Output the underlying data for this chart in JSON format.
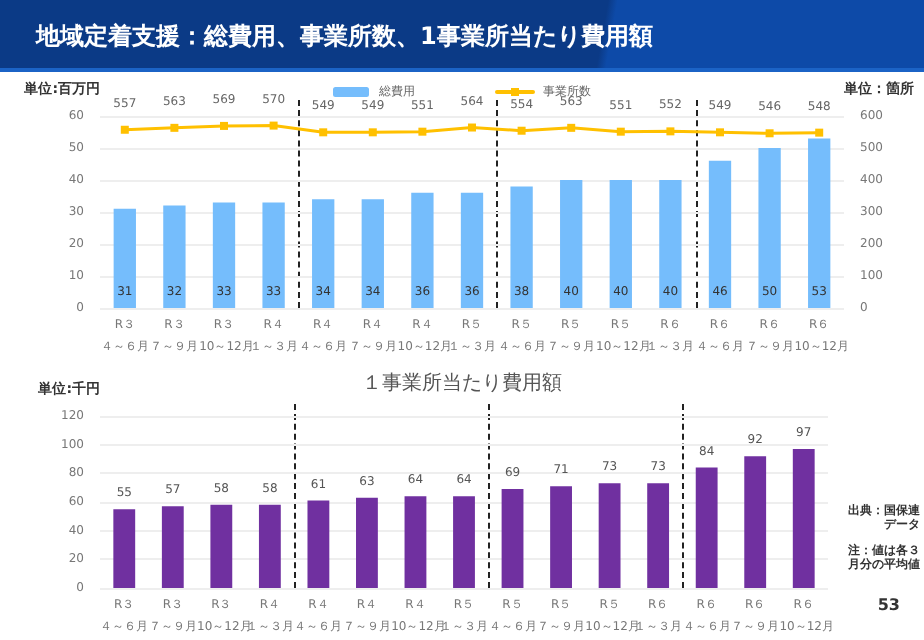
{
  "chart_data": [
    {
      "type": "bar",
      "title": "地域定着支援：総費用、事業所数、1事業所当たり費用額",
      "ylabel": "単位:百万円",
      "y2label": "単位：箇所",
      "categories": [
        "R３４～６月",
        "R３７～９月",
        "R３10～12月",
        "R４１～３月",
        "R４４～６月",
        "R４７～９月",
        "R４10～12月",
        "R５１～３月",
        "R５４～６月",
        "R５７～９月",
        "R５10～12月",
        "R６１～３月",
        "R６４～６月",
        "R６７～９月",
        "R６10～12月"
      ],
      "series": [
        {
          "name": "総費用",
          "color": "#75bdfc",
          "values": [
            31,
            32,
            33,
            33,
            34,
            34,
            36,
            36,
            38,
            40,
            40,
            40,
            46,
            50,
            53
          ]
        },
        {
          "name": "事業所数",
          "type": "line",
          "axis": "y2",
          "color": "#ffc000",
          "values": [
            557,
            563,
            569,
            570,
            549,
            549,
            551,
            564,
            554,
            563,
            551,
            552,
            549,
            546,
            548
          ]
        }
      ],
      "ylim": [
        0,
        60
      ],
      "yticks": [
        0,
        10,
        20,
        30,
        40,
        50,
        60
      ],
      "y2lim": [
        0,
        600
      ],
      "y2ticks": [
        0,
        100,
        200,
        300,
        400,
        500,
        600
      ],
      "data_labels": true,
      "legend": "top",
      "grid": "y",
      "marker": "square"
    },
    {
      "type": "bar",
      "title": "１事業所当たり費用額",
      "ylabel": "単位:千円",
      "categories": [
        "R３４～６月",
        "R３７～９月",
        "R３10～12月",
        "R４１～３月",
        "R４４～６月",
        "R４７～９月",
        "R４10～12月",
        "R５１～３月",
        "R５４～６月",
        "R５７～９月",
        "R５10～12月",
        "R６１～３月",
        "R６４～６月",
        "R６７～９月",
        "R６10～12月"
      ],
      "series": [
        {
          "color": "#7030a0",
          "values": [
            55,
            57,
            58,
            58,
            61,
            63,
            64,
            64,
            69,
            71,
            73,
            73,
            84,
            92,
            97
          ]
        }
      ],
      "ylim": [
        0,
        120
      ],
      "yticks": [
        0,
        20,
        40,
        60,
        80,
        100,
        120
      ],
      "data_labels": true,
      "grid": "y",
      "annotations": [
        "出典：国保連データ",
        "注：値は各３月分の平均値",
        "53"
      ]
    }
  ]
}
